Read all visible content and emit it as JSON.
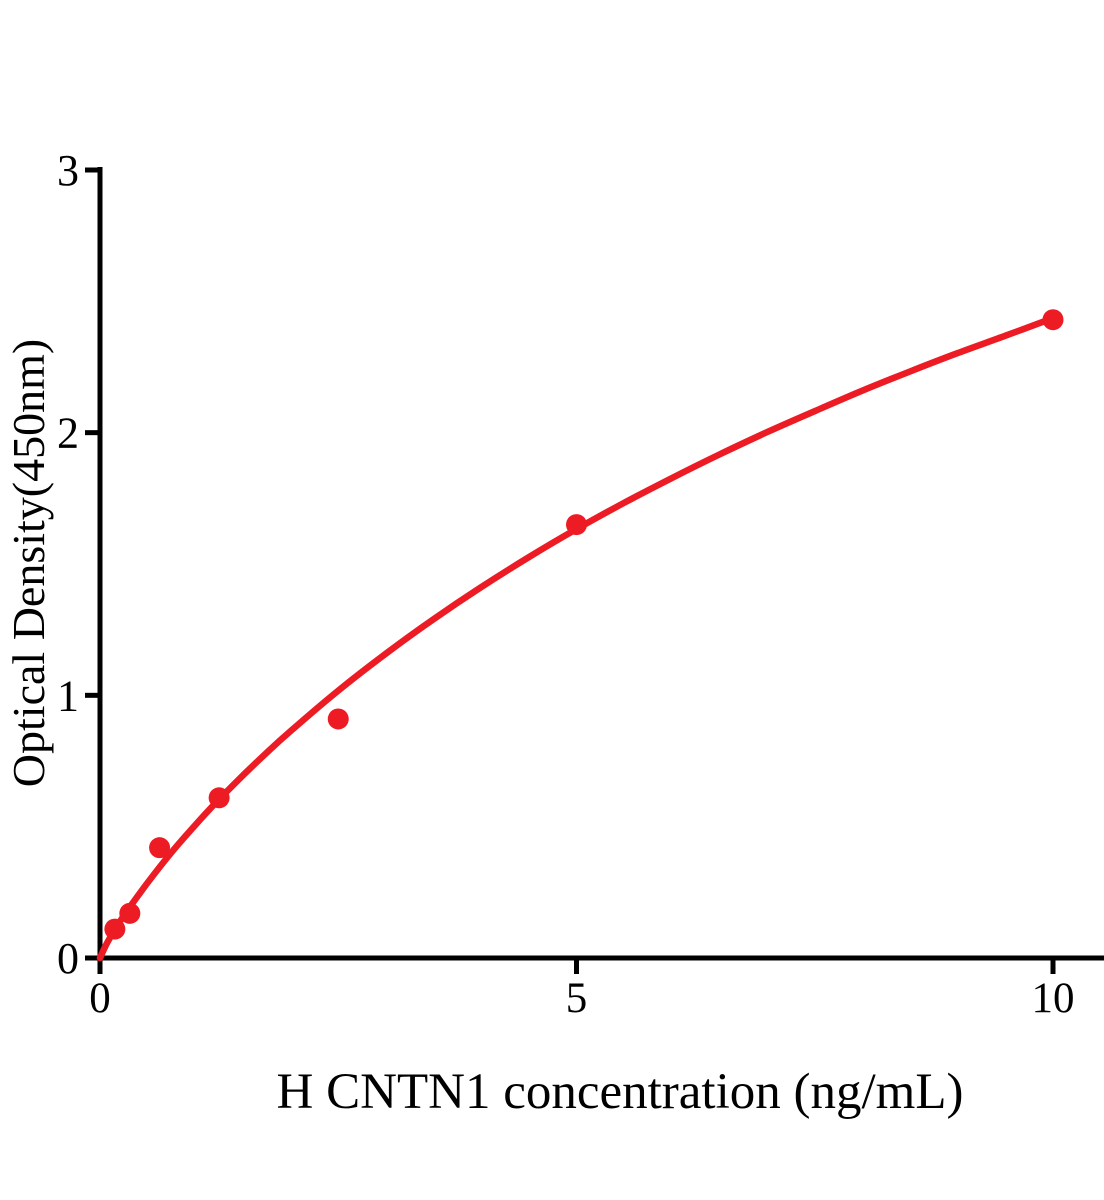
{
  "chart_data": {
    "type": "scatter",
    "title": "",
    "xlabel": "H CNTN1 concentration (ng/mL)",
    "ylabel": "Optical Density(450nm)",
    "xlim": [
      0,
      10.55
    ],
    "ylim": [
      0,
      3
    ],
    "x_ticks": [
      0,
      5,
      10
    ],
    "y_ticks": [
      0,
      1,
      2,
      3
    ],
    "grid": false,
    "legend": "none",
    "series": [
      {
        "name": "standard-points",
        "marker": "filled-circle",
        "x": [
          0.156,
          0.313,
          0.625,
          1.25,
          2.5,
          5,
          10
        ],
        "y": [
          0.11,
          0.17,
          0.42,
          0.61,
          0.91,
          1.65,
          2.43
        ]
      }
    ],
    "fit_curve_points": [
      [
        0,
        0
      ],
      [
        0.05,
        0.04
      ],
      [
        0.1,
        0.074
      ],
      [
        0.25,
        0.161
      ],
      [
        0.5,
        0.287
      ],
      [
        0.75,
        0.402
      ],
      [
        1,
        0.506
      ],
      [
        1.25,
        0.604
      ],
      [
        1.5,
        0.695
      ],
      [
        1.75,
        0.782
      ],
      [
        2,
        0.864
      ],
      [
        2.5,
        1.018
      ],
      [
        3,
        1.159
      ],
      [
        3.5,
        1.29
      ],
      [
        4,
        1.412
      ],
      [
        4.5,
        1.526
      ],
      [
        5,
        1.633
      ],
      [
        5.5,
        1.733
      ],
      [
        6,
        1.827
      ],
      [
        6.5,
        1.917
      ],
      [
        7,
        2.002
      ],
      [
        7.5,
        2.082
      ],
      [
        8,
        2.16
      ],
      [
        8.5,
        2.233
      ],
      [
        9,
        2.303
      ],
      [
        9.5,
        2.369
      ],
      [
        10,
        2.436
      ]
    ],
    "colors": {
      "series": "#ED1C24",
      "axis": "#000000",
      "background": "#ffffff"
    }
  }
}
